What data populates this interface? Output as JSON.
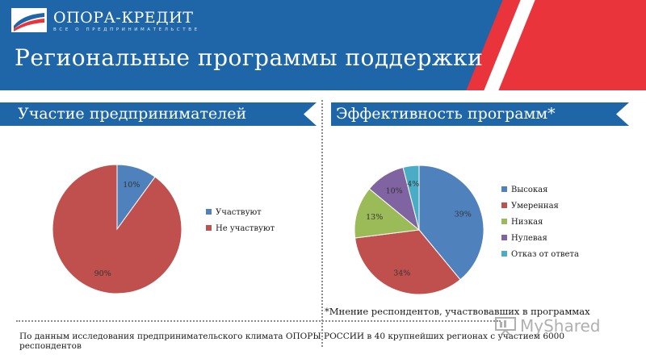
{
  "header": {
    "logo_name": "ОПОРА-КРЕДИТ",
    "logo_tagline": "ВСЕ О ПРЕДПРИНИМАТЕЛЬСТВЕ",
    "title": "Региональные программы поддержки"
  },
  "sections": {
    "left_title": "Участие предпринимателей",
    "right_title": "Эффективность программ*"
  },
  "footnote": "*Мнение респондентов, участвовавших в программах",
  "source": "По данным исследования предпринимательского климата ОПОРЫ РОССИИ в 40 крупнейших регионах с участием 6000 респондентов",
  "watermark": "MyShared",
  "colors": {
    "brand_blue": "#1f66a8",
    "brand_red": "#e8343a"
  },
  "chart_data": [
    {
      "type": "pie",
      "labels": [
        "Участвуют",
        "Не участвуют"
      ],
      "values": [
        10,
        90
      ],
      "value_labels": [
        "10%",
        "90%"
      ],
      "colors": [
        "#4f81bd",
        "#c0504d"
      ],
      "legend_position": "right"
    },
    {
      "type": "pie",
      "labels": [
        "Высокая",
        "Умеренная",
        "Низкая",
        "Нулевая",
        "Отказ от ответа"
      ],
      "values": [
        39,
        34,
        13,
        10,
        4
      ],
      "value_labels": [
        "39%",
        "34%",
        "13%",
        "10%",
        "4%"
      ],
      "colors": [
        "#4f81bd",
        "#c0504d",
        "#9bbb59",
        "#8064a2",
        "#4bacc6"
      ],
      "legend_position": "right"
    }
  ]
}
